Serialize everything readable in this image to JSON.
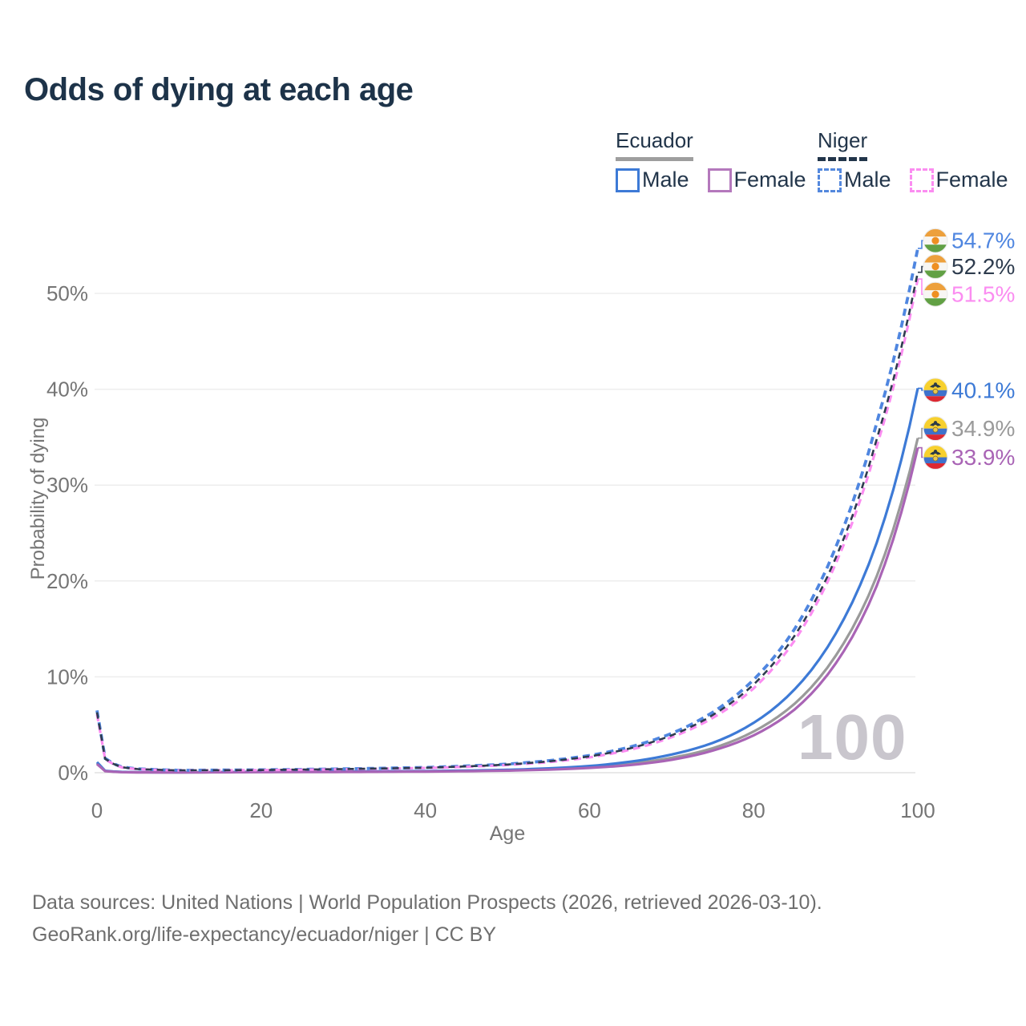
{
  "title": "Odds of dying at each age",
  "legend": {
    "groups": [
      {
        "label": "Ecuador",
        "line_style": "solid",
        "underline_color": "#9e9e9e",
        "items": [
          {
            "label": "Male",
            "color": "#3d7ad6"
          },
          {
            "label": "Female",
            "color": "#b478bc"
          }
        ]
      },
      {
        "label": "Niger",
        "line_style": "dashed",
        "underline_color": "#22354a",
        "items": [
          {
            "label": "Male",
            "color": "#5488dd"
          },
          {
            "label": "Female",
            "color": "#fb8df1"
          }
        ]
      }
    ]
  },
  "chart_data": {
    "type": "line",
    "xlabel": "Age",
    "ylabel": "Probability of dying",
    "xlim": [
      0,
      100
    ],
    "ylim": [
      0,
      55
    ],
    "xticks": [
      0,
      20,
      40,
      60,
      80,
      100
    ],
    "ytick_values": [
      0,
      10,
      20,
      30,
      40,
      50
    ],
    "ytick_labels": [
      "0%",
      "10%",
      "20%",
      "30%",
      "40%",
      "50%"
    ],
    "grid": true,
    "legend_position": "top-right",
    "watermark_age": "100",
    "series": [
      {
        "name": "Ecuador Both sexes",
        "country": "Ecuador",
        "sex": "Both",
        "color": "#9a9a9a",
        "dashed": false,
        "flag": "ecuador",
        "end_label": "34.9%",
        "end_value": 34.9,
        "label_y_pct": 35.9,
        "points": [
          [
            0,
            1.0
          ],
          [
            1,
            0.18
          ],
          [
            3,
            0.07
          ],
          [
            5,
            0.04
          ],
          [
            10,
            0.035
          ],
          [
            20,
            0.08
          ],
          [
            30,
            0.1
          ],
          [
            40,
            0.14
          ],
          [
            45,
            0.19
          ],
          [
            50,
            0.26
          ],
          [
            55,
            0.38
          ],
          [
            60,
            0.6
          ],
          [
            65,
            0.95
          ],
          [
            70,
            1.55
          ],
          [
            75,
            2.55
          ],
          [
            80,
            4.3
          ],
          [
            85,
            7.2
          ],
          [
            90,
            12.2
          ],
          [
            95,
            20.5
          ],
          [
            100,
            34.9
          ]
        ]
      },
      {
        "name": "Ecuador Male",
        "country": "Ecuador",
        "sex": "Male",
        "color": "#3d7ad6",
        "dashed": false,
        "flag": "ecuador",
        "end_label": "40.1%",
        "end_value": 40.1,
        "label_y_pct": 39.9,
        "points": [
          [
            0,
            1.1
          ],
          [
            1,
            0.2
          ],
          [
            3,
            0.08
          ],
          [
            5,
            0.05
          ],
          [
            10,
            0.04
          ],
          [
            20,
            0.1
          ],
          [
            30,
            0.12
          ],
          [
            40,
            0.17
          ],
          [
            45,
            0.22
          ],
          [
            50,
            0.3
          ],
          [
            55,
            0.45
          ],
          [
            60,
            0.7
          ],
          [
            65,
            1.15
          ],
          [
            70,
            1.9
          ],
          [
            75,
            3.1
          ],
          [
            80,
            5.2
          ],
          [
            85,
            8.7
          ],
          [
            90,
            14.5
          ],
          [
            95,
            24.0
          ],
          [
            100,
            40.1
          ]
        ]
      },
      {
        "name": "Ecuador Female",
        "country": "Ecuador",
        "sex": "Female",
        "color": "#a964b5",
        "dashed": false,
        "flag": "ecuador",
        "end_label": "33.9%",
        "end_value": 33.9,
        "label_y_pct": 32.9,
        "points": [
          [
            0,
            0.9
          ],
          [
            1,
            0.16
          ],
          [
            3,
            0.06
          ],
          [
            5,
            0.035
          ],
          [
            10,
            0.03
          ],
          [
            20,
            0.06
          ],
          [
            30,
            0.08
          ],
          [
            40,
            0.12
          ],
          [
            45,
            0.16
          ],
          [
            50,
            0.22
          ],
          [
            55,
            0.32
          ],
          [
            60,
            0.5
          ],
          [
            65,
            0.8
          ],
          [
            70,
            1.35
          ],
          [
            75,
            2.3
          ],
          [
            80,
            3.9
          ],
          [
            85,
            6.6
          ],
          [
            90,
            11.4
          ],
          [
            95,
            19.5
          ],
          [
            100,
            33.9
          ]
        ]
      },
      {
        "name": "Niger Male",
        "country": "Niger",
        "sex": "Male",
        "color": "#4f86e0",
        "dashed": true,
        "flag": "niger",
        "end_label": "54.7%",
        "end_value": 54.7,
        "label_y_pct": 55.5,
        "points": [
          [
            0,
            6.5
          ],
          [
            1,
            1.5
          ],
          [
            3,
            0.6
          ],
          [
            5,
            0.4
          ],
          [
            10,
            0.25
          ],
          [
            20,
            0.3
          ],
          [
            30,
            0.4
          ],
          [
            40,
            0.55
          ],
          [
            45,
            0.7
          ],
          [
            50,
            0.9
          ],
          [
            55,
            1.25
          ],
          [
            60,
            1.8
          ],
          [
            65,
            2.7
          ],
          [
            70,
            4.1
          ],
          [
            75,
            6.3
          ],
          [
            80,
            9.7
          ],
          [
            85,
            15.0
          ],
          [
            90,
            23.5
          ],
          [
            95,
            36.5
          ],
          [
            100,
            54.7
          ]
        ]
      },
      {
        "name": "Niger Female",
        "country": "Niger",
        "sex": "Female",
        "color": "#fb8df1",
        "dashed": true,
        "flag": "niger",
        "end_label": "51.5%",
        "end_value": 51.5,
        "label_y_pct": 49.9,
        "points": [
          [
            0,
            6.1
          ],
          [
            1,
            1.4
          ],
          [
            3,
            0.56
          ],
          [
            5,
            0.37
          ],
          [
            10,
            0.23
          ],
          [
            20,
            0.27
          ],
          [
            30,
            0.36
          ],
          [
            40,
            0.49
          ],
          [
            45,
            0.62
          ],
          [
            50,
            0.8
          ],
          [
            55,
            1.1
          ],
          [
            60,
            1.6
          ],
          [
            65,
            2.4
          ],
          [
            70,
            3.7
          ],
          [
            75,
            5.7
          ],
          [
            80,
            8.8
          ],
          [
            85,
            13.8
          ],
          [
            90,
            21.8
          ],
          [
            95,
            34.0
          ],
          [
            100,
            51.5
          ]
        ]
      },
      {
        "name": "Niger Both sexes",
        "country": "Niger",
        "sex": "Both",
        "color": "#2e3c4e",
        "dashed": true,
        "flag": "niger",
        "end_label": "52.2%",
        "end_value": 52.2,
        "label_y_pct": 52.8,
        "points": [
          [
            0,
            6.3
          ],
          [
            1,
            1.45
          ],
          [
            3,
            0.58
          ],
          [
            5,
            0.38
          ],
          [
            10,
            0.24
          ],
          [
            20,
            0.28
          ],
          [
            30,
            0.38
          ],
          [
            40,
            0.52
          ],
          [
            45,
            0.66
          ],
          [
            50,
            0.85
          ],
          [
            55,
            1.18
          ],
          [
            60,
            1.7
          ],
          [
            65,
            2.55
          ],
          [
            70,
            3.9
          ],
          [
            75,
            6.0
          ],
          [
            80,
            9.2
          ],
          [
            85,
            14.3
          ],
          [
            90,
            22.4
          ],
          [
            95,
            34.8
          ],
          [
            100,
            52.2
          ]
        ]
      }
    ]
  },
  "footer": {
    "line1": "Data sources: United Nations | World Population Prospects (2026, retrieved 2026-03-10).",
    "line2": "GeoRank.org/life-expectancy/ecuador/niger | CC BY"
  }
}
